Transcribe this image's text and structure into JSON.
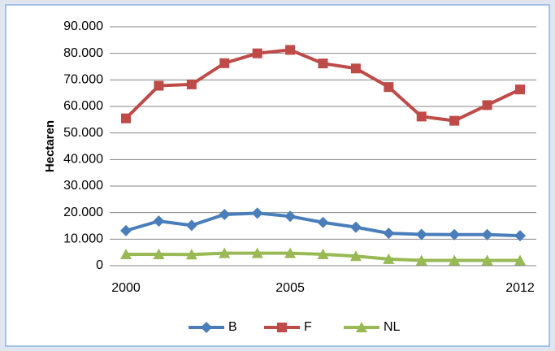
{
  "chart_data": {
    "type": "line",
    "y_label": "Hectaren",
    "categories": [
      "2000",
      null,
      null,
      null,
      null,
      "2005",
      null,
      null,
      null,
      null,
      null,
      null,
      "2012"
    ],
    "series": [
      {
        "name": "B",
        "color": "#4a7ebb",
        "marker": "diamond",
        "values": [
          13200,
          16800,
          15200,
          19300,
          19800,
          18600,
          16300,
          14500,
          12200,
          11800,
          11700,
          11700,
          11300
        ]
      },
      {
        "name": "F",
        "color": "#be4b48",
        "marker": "square",
        "values": [
          55500,
          67800,
          68300,
          76300,
          80000,
          81300,
          76200,
          74300,
          67300,
          56200,
          54600,
          60500,
          66400
        ]
      },
      {
        "name": "NL",
        "color": "#98b954",
        "marker": "triangle",
        "values": [
          4300,
          4300,
          4200,
          4700,
          4700,
          4700,
          4300,
          3600,
          2500,
          2000,
          2000,
          2000,
          2000
        ]
      }
    ],
    "ylim": [
      0,
      90000
    ],
    "yticks": [
      0,
      {
        "value": 10000,
        "label": "10.000"
      },
      {
        "value": 20000,
        "label": "20.000"
      },
      {
        "value": 30000,
        "label": "30.000"
      },
      {
        "value": 40000,
        "label": "40.000"
      },
      {
        "value": 50000,
        "label": "50.000"
      },
      {
        "value": 60000,
        "label": "60.000"
      },
      {
        "value": 70000,
        "label": "70.000"
      },
      {
        "value": 80000,
        "label": "80.000"
      },
      {
        "value": 90000,
        "label": "90.000"
      }
    ],
    "grid": true,
    "legend": "bottom"
  }
}
